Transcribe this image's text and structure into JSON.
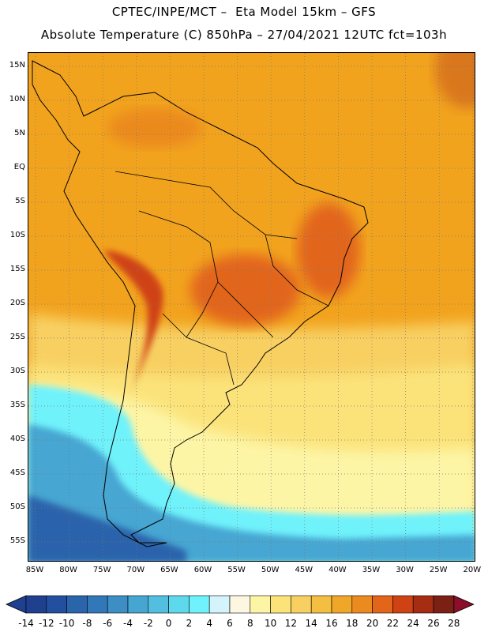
{
  "header": {
    "line1": "CPTEC/INPE/MCT –  Eta Model 15km – GFS",
    "line2": "Absolute Temperature (C) 850hPa – 27/04/2021 12UTC fct=103h"
  },
  "map": {
    "variable": "Absolute Temperature (C) 850hPa",
    "latitude_labels": [
      "15N",
      "10N",
      "5N",
      "EQ",
      "5S",
      "10S",
      "15S",
      "20S",
      "25S",
      "30S",
      "35S",
      "40S",
      "45S",
      "50S",
      "55S"
    ],
    "longitude_labels": [
      "85W",
      "80W",
      "75W",
      "70W",
      "65W",
      "60W",
      "55W",
      "50W",
      "45W",
      "40W",
      "35W",
      "30W",
      "25W",
      "20W"
    ],
    "grid": true,
    "region": "South America"
  },
  "colorbar": {
    "labels": [
      "-14",
      "-12",
      "-10",
      "-8",
      "-6",
      "-4",
      "-2",
      "0",
      "2",
      "4",
      "6",
      "8",
      "10",
      "12",
      "14",
      "16",
      "18",
      "20",
      "22",
      "24",
      "26",
      "28"
    ],
    "colors": [
      "#1f3f8f",
      "#22509e",
      "#2a64ab",
      "#3278b8",
      "#3c8ec5",
      "#46a6d2",
      "#52bfe0",
      "#5ed8ec",
      "#6ff2fb",
      "#d4f3fb",
      "#fdf6e0",
      "#fdf5a6",
      "#fbe37a",
      "#f8d062",
      "#f4be40",
      "#f0a628",
      "#eb8a1e",
      "#e2651a",
      "#cf4214",
      "#a72d12",
      "#7c1f14",
      "#8c0f2a"
    ]
  },
  "colors": {
    "hot": "#d9771f",
    "warm": "#f2a31e",
    "mild": "#f8d062",
    "cool": "#fdf5a6",
    "cold": "#6ff2fb",
    "colder": "#3c8ec5",
    "coast": "#000000"
  }
}
